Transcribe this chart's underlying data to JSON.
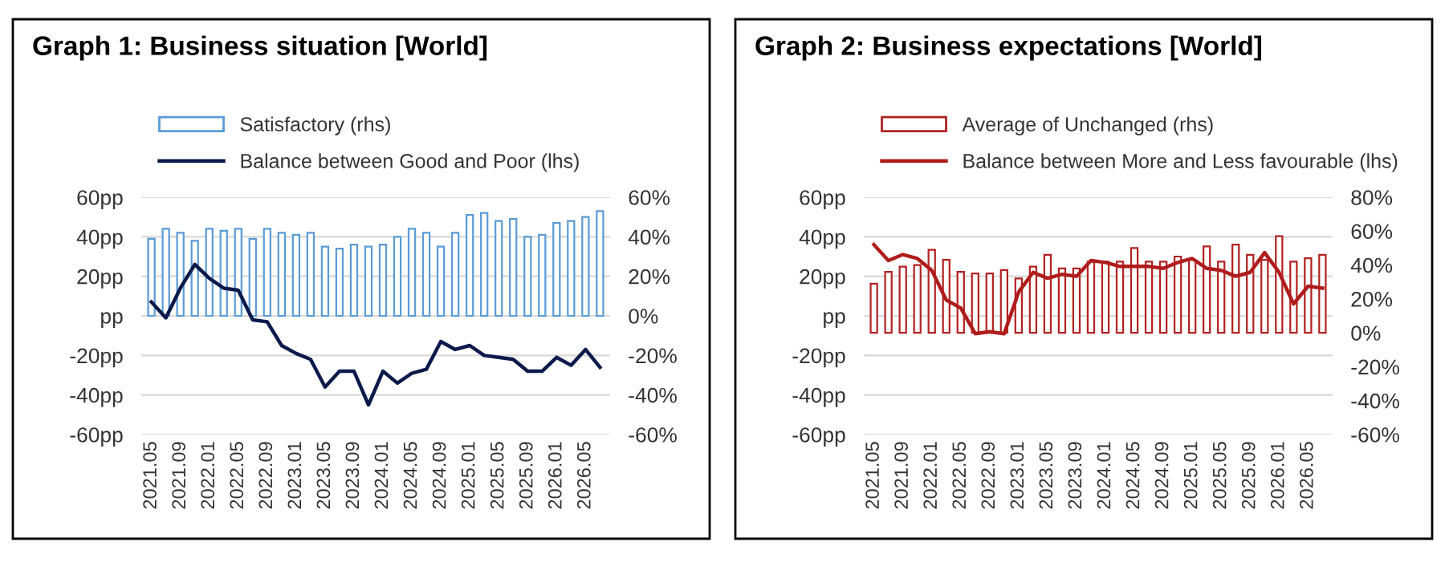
{
  "chart_data": [
    {
      "type": "bar",
      "title": "Graph 1: Business situation [World]",
      "categories": [
        "2021.05",
        null,
        "2021.09",
        null,
        "2022.01",
        null,
        "2022.05",
        null,
        "2022.09",
        null,
        "2023.01",
        null,
        "2023.05",
        null,
        "2023.09",
        null,
        "2024.01",
        null,
        "2024.05",
        null,
        "2024.09",
        null,
        "2025.01",
        null,
        "2025.05",
        null,
        "2025.09",
        null,
        "2026.01",
        null,
        "2026.05",
        null
      ],
      "series": [
        {
          "name": "Satisfactory (rhs)",
          "axis": "y2",
          "color": "#5b9bd5",
          "values": [
            39,
            44,
            42,
            38,
            44,
            43,
            44,
            39,
            44,
            42,
            41,
            42,
            35,
            34,
            36,
            35,
            36,
            40,
            44,
            42,
            35,
            42,
            51,
            52,
            48,
            49,
            40,
            41,
            47,
            48,
            50,
            53
          ]
        },
        {
          "name": "Balance between Good and Poor (lhs)",
          "type": "line",
          "color": "#0b1a4a",
          "values": [
            7,
            -1,
            14,
            26,
            19,
            14,
            13,
            -2,
            -3,
            -15,
            -19,
            -22,
            -36,
            -28,
            -28,
            -45,
            -28,
            -34,
            -29,
            -27,
            -13,
            -17,
            -15,
            -20,
            -21,
            -22,
            -28,
            -28,
            -21,
            -25,
            -17,
            -26
          ]
        }
      ],
      "ylim": [
        -60,
        60
      ],
      "yticks": [
        {
          "value": -60,
          "label": "-60pp"
        },
        {
          "value": -40,
          "label": "-40pp"
        },
        {
          "value": -20,
          "label": "-20pp"
        },
        {
          "value": 0,
          "label": "pp"
        },
        {
          "value": 20,
          "label": "20pp"
        },
        {
          "value": 40,
          "label": "40pp"
        },
        {
          "value": 60,
          "label": "60pp"
        }
      ],
      "y2lim": [
        -60,
        60
      ],
      "y2ticks": [
        {
          "value": -60,
          "label": "-60%"
        },
        {
          "value": -40,
          "label": "-40%"
        },
        {
          "value": -20,
          "label": "-20%"
        },
        {
          "value": 0,
          "label": "0%"
        },
        {
          "value": 20,
          "label": "20%"
        },
        {
          "value": 40,
          "label": "40%"
        },
        {
          "value": 60,
          "label": "60%"
        }
      ],
      "grid": "y",
      "legend": "top"
    },
    {
      "type": "bar",
      "title": "Graph 2: Business expectations [World]",
      "categories": [
        "2021.05",
        null,
        "2021.09",
        null,
        "2022.01",
        null,
        "2022.05",
        null,
        "2022.09",
        null,
        "2023.01",
        null,
        "2023.05",
        null,
        "2023.09",
        null,
        "2024.01",
        null,
        "2024.05",
        null,
        "2024.09",
        null,
        "2025.01",
        null,
        "2025.05",
        null,
        "2025.09",
        null,
        "2026.01",
        null,
        "2026.05",
        null
      ],
      "series": [
        {
          "name": "Average of Unchanged (rhs)",
          "axis": "y2",
          "color": "#b22222",
          "values": [
            29,
            36,
            39,
            40,
            49,
            43,
            36,
            35,
            35,
            37,
            32,
            39,
            46,
            38,
            38,
            42,
            42,
            42,
            50,
            42,
            42,
            45,
            43,
            51,
            42,
            52,
            46,
            43,
            57,
            42,
            44,
            46
          ]
        },
        {
          "name": "Balance between More and Less favourable (lhs)",
          "type": "line",
          "color": "#b01c1c",
          "values": [
            36,
            28,
            31,
            29,
            23,
            8,
            4,
            -9,
            -8,
            -9,
            12,
            22,
            19,
            21,
            20,
            28,
            27,
            25,
            25,
            25,
            24,
            27,
            29,
            24,
            23,
            20,
            22,
            32,
            22,
            6,
            15,
            14
          ]
        }
      ],
      "ylim": [
        -60,
        60
      ],
      "yticks": [
        {
          "value": -60,
          "label": "-60pp"
        },
        {
          "value": -40,
          "label": "-40pp"
        },
        {
          "value": -20,
          "label": "-20pp"
        },
        {
          "value": 0,
          "label": "pp"
        },
        {
          "value": 20,
          "label": "20pp"
        },
        {
          "value": 40,
          "label": "40pp"
        },
        {
          "value": 60,
          "label": "60pp"
        }
      ],
      "y2lim": [
        -60,
        80
      ],
      "y2ticks": [
        {
          "value": -60,
          "label": "-60%"
        },
        {
          "value": -40,
          "label": "-40%"
        },
        {
          "value": -20,
          "label": "-20%"
        },
        {
          "value": 0,
          "label": "0%"
        },
        {
          "value": 20,
          "label": "20%"
        },
        {
          "value": 40,
          "label": "40%"
        },
        {
          "value": 60,
          "label": "60%"
        },
        {
          "value": 80,
          "label": "80%"
        }
      ],
      "grid": "y",
      "legend": "top"
    }
  ]
}
